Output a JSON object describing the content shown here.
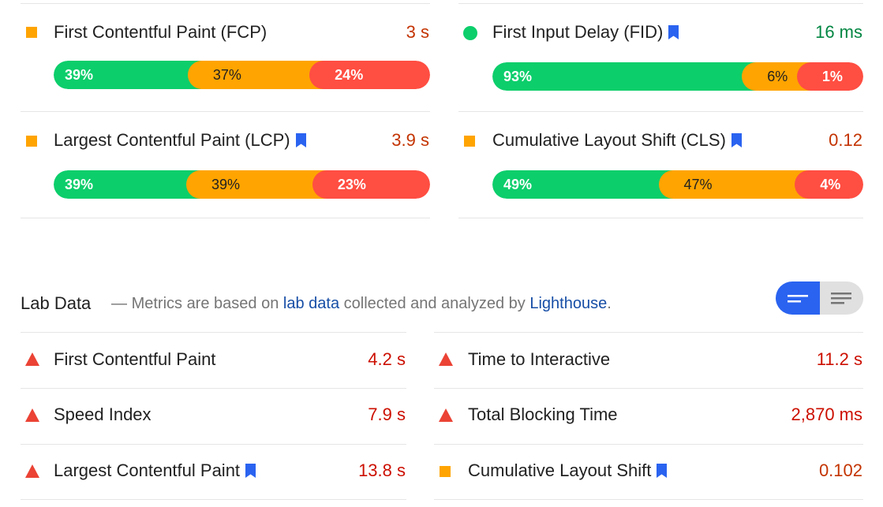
{
  "field_data": {
    "metrics": [
      {
        "label": "First Contentful Paint (FCP)",
        "value": "3 s",
        "status": "average",
        "bookmark": false,
        "distribution": [
          {
            "label": "39%",
            "fraction": 0.39
          },
          {
            "label": "37%",
            "fraction": 0.37
          },
          {
            "label": "24%",
            "fraction": 0.24
          }
        ]
      },
      {
        "label": "First Input Delay (FID)",
        "value": "16 ms",
        "status": "good",
        "bookmark": true,
        "distribution": [
          {
            "label": "93%",
            "fraction": 0.93
          },
          {
            "label": "6%",
            "fraction": 0.06
          },
          {
            "label": "1%",
            "fraction": 0.01
          }
        ]
      },
      {
        "label": "Largest Contentful Paint (LCP)",
        "value": "3.9 s",
        "status": "average",
        "bookmark": true,
        "distribution": [
          {
            "label": "39%",
            "fraction": 0.39
          },
          {
            "label": "39%",
            "fraction": 0.39
          },
          {
            "label": "23%",
            "fraction": 0.23
          }
        ]
      },
      {
        "label": "Cumulative Layout Shift (CLS)",
        "value": "0.12",
        "status": "average",
        "bookmark": true,
        "distribution": [
          {
            "label": "49%",
            "fraction": 0.49
          },
          {
            "label": "47%",
            "fraction": 0.47
          },
          {
            "label": "4%",
            "fraction": 0.04
          }
        ]
      }
    ]
  },
  "lab_data": {
    "title": "Lab Data",
    "desc_dash": "—",
    "desc_part1": "Metrics are based on",
    "desc_link1": "lab data",
    "desc_part2": "collected and analyzed by",
    "desc_link2": "Lighthouse",
    "desc_end": ".",
    "metrics": [
      {
        "label": "First Contentful Paint",
        "value": "4.2 s",
        "status": "fail",
        "bookmark": false
      },
      {
        "label": "Time to Interactive",
        "value": "11.2 s",
        "status": "fail",
        "bookmark": false
      },
      {
        "label": "Speed Index",
        "value": "7.9 s",
        "status": "fail",
        "bookmark": false
      },
      {
        "label": "Total Blocking Time",
        "value": "2,870 ms",
        "status": "fail",
        "bookmark": false
      },
      {
        "label": "Largest Contentful Paint",
        "value": "13.8 s",
        "status": "fail",
        "bookmark": true
      },
      {
        "label": "Cumulative Layout Shift",
        "value": "0.102",
        "status": "average",
        "bookmark": true
      }
    ]
  },
  "toggle": {
    "options": [
      "compact-view-icon",
      "expanded-view-icon"
    ],
    "selected": "compact-view-icon"
  },
  "colors": {
    "good": "#0cce6b",
    "average": "#ffa400",
    "poor": "#ff4e42",
    "fail_icon": "#eb4335",
    "accent": "#2a63f0"
  }
}
